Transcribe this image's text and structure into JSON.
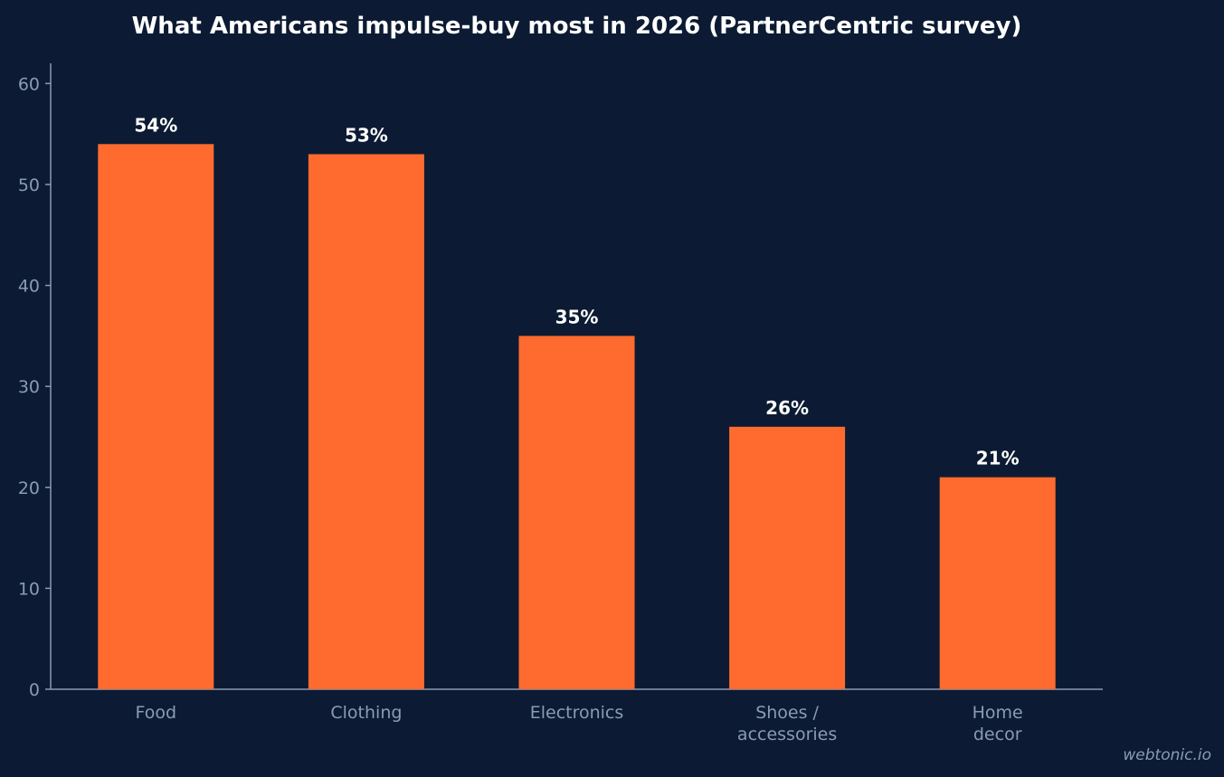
{
  "chart_data": {
    "type": "bar",
    "title": "What Americans impulse-buy most in 2026 (PartnerCentric survey)",
    "categories": [
      "Food",
      "Clothing",
      "Electronics",
      "Shoes /\naccessories",
      "Home\ndecor"
    ],
    "values": [
      54,
      53,
      35,
      26,
      21
    ],
    "data_labels": [
      "54%",
      "53%",
      "35%",
      "26%",
      "21%"
    ],
    "y_ticks": [
      "0",
      "10",
      "20",
      "30",
      "40",
      "50",
      "60"
    ],
    "ylim": [
      0,
      62
    ],
    "xlabel": "",
    "ylabel": "",
    "grid": false,
    "bar_color": "#ff6b2f",
    "background_color": "#0c1b33"
  },
  "watermark": "webtonic.io"
}
